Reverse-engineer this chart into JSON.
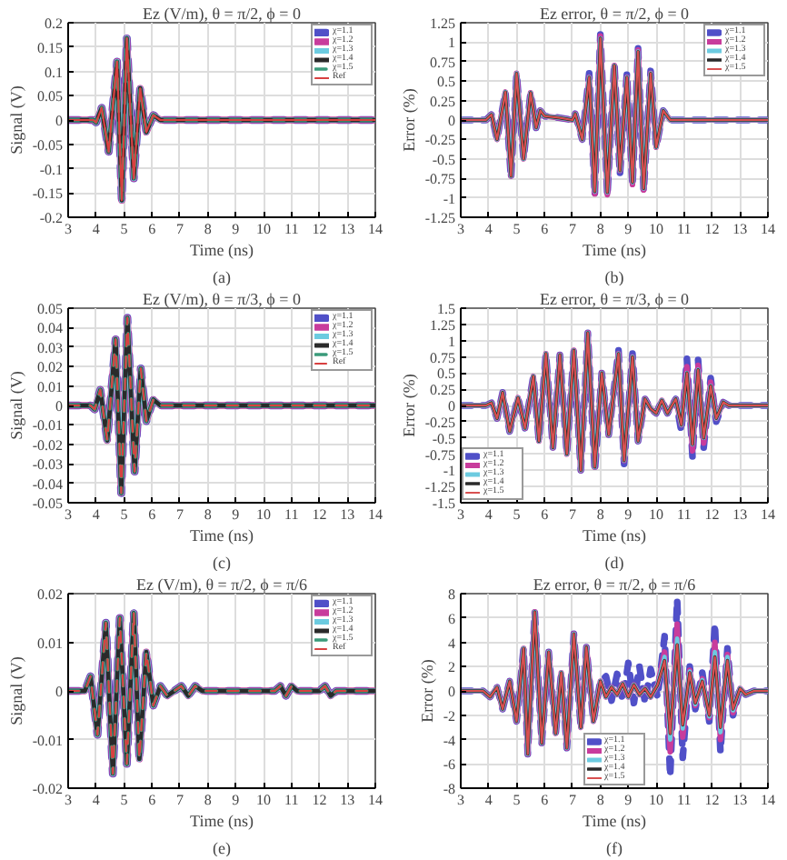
{
  "chart_data": [
    {
      "type": "line",
      "title": "Ez (V/m), θ = π/2, ϕ = 0",
      "xlabel": "Time (ns)",
      "ylabel": "Signal (V)",
      "annotations": [
        "(a)"
      ],
      "xlim": [
        3,
        14
      ],
      "xticks": [
        3,
        4,
        5,
        6,
        7,
        8,
        9,
        10,
        11,
        12,
        13,
        14
      ],
      "ylim": [
        -0.2,
        0.2
      ],
      "yticks": [
        -0.2,
        -0.15,
        -0.1,
        -0.05,
        0,
        0.05,
        0.1,
        0.15,
        0.2
      ],
      "grid": true,
      "legend": "top right",
      "x": [
        3,
        3.9,
        4.0,
        4.2,
        4.45,
        4.75,
        4.92,
        5.1,
        5.35,
        5.58,
        5.8,
        6.05,
        6.3,
        14
      ],
      "series": [
        {
          "name": "χ=1.1",
          "color": "#5050c8",
          "line_style": "dashed",
          "values": [
            0,
            0,
            -0.005,
            0.025,
            -0.065,
            0.12,
            -0.165,
            0.168,
            -0.12,
            0.065,
            -0.025,
            0.01,
            0,
            0
          ]
        },
        {
          "name": "χ=1.2",
          "color": "#c83c9c",
          "line_style": "solid",
          "values": [
            0,
            0,
            -0.005,
            0.025,
            -0.065,
            0.12,
            -0.165,
            0.168,
            -0.12,
            0.065,
            -0.025,
            0.01,
            0,
            0
          ]
        },
        {
          "name": "χ=1.3",
          "color": "#6ccbe0",
          "line_style": "solid",
          "values": [
            0,
            0,
            -0.005,
            0.025,
            -0.065,
            0.12,
            -0.165,
            0.168,
            -0.12,
            0.065,
            -0.025,
            0.01,
            0,
            0
          ]
        },
        {
          "name": "χ=1.4",
          "color": "#2a2a2a",
          "line_style": "solid",
          "values": [
            0,
            0,
            -0.005,
            0.025,
            -0.065,
            0.12,
            -0.165,
            0.168,
            -0.12,
            0.065,
            -0.025,
            0.01,
            0,
            0
          ]
        },
        {
          "name": "χ=1.5",
          "color": "#3a9a7a",
          "line_style": "dashed",
          "values": [
            0,
            0,
            -0.005,
            0.025,
            -0.065,
            0.12,
            -0.165,
            0.168,
            -0.12,
            0.065,
            -0.025,
            0.01,
            0,
            0
          ]
        },
        {
          "name": "Ref",
          "color": "#d84040",
          "line_style": "solid",
          "values": [
            0,
            0,
            -0.005,
            0.025,
            -0.065,
            0.12,
            -0.165,
            0.168,
            -0.12,
            0.065,
            -0.025,
            0.01,
            0,
            0
          ]
        }
      ]
    },
    {
      "type": "line",
      "title": "Ez error, θ = π/2, ϕ = 0",
      "xlabel": "Time (ns)",
      "ylabel": "Error (%)",
      "annotations": [
        "(b)"
      ],
      "xlim": [
        3,
        14
      ],
      "xticks": [
        3,
        4,
        5,
        6,
        7,
        8,
        9,
        10,
        11,
        12,
        13,
        14
      ],
      "ylim": [
        -1.25,
        1.25
      ],
      "yticks": [
        -1.25,
        -1,
        -0.75,
        -0.5,
        -0.25,
        0,
        0.25,
        0.5,
        0.75,
        1,
        1.25
      ],
      "grid": true,
      "legend": "top right",
      "x": [
        3,
        3.9,
        4.1,
        4.3,
        4.6,
        4.8,
        5.0,
        5.25,
        5.5,
        5.7,
        5.85,
        6.0,
        6.5,
        7.0,
        7.1,
        7.35,
        7.6,
        7.8,
        8.0,
        8.25,
        8.5,
        8.7,
        8.95,
        9.15,
        9.35,
        9.55,
        9.8,
        10.0,
        10.25,
        10.5,
        14
      ],
      "series": [
        {
          "name": "χ=1.1",
          "color": "#5050c8",
          "line_style": "dashed",
          "values": [
            0,
            0,
            0.07,
            -0.25,
            0.36,
            -0.75,
            0.6,
            -0.5,
            0.35,
            -0.1,
            0.12,
            0.05,
            0.03,
            0,
            0.08,
            -0.25,
            0.6,
            -0.97,
            1.1,
            -0.98,
            0.73,
            -0.7,
            0.6,
            -0.85,
            0.92,
            -0.92,
            0.63,
            -0.35,
            0.12,
            0,
            0
          ]
        },
        {
          "name": "χ=1.2",
          "color": "#c83c9c",
          "line_style": "solid",
          "values": [
            0,
            0,
            0.07,
            -0.25,
            0.36,
            -0.72,
            0.6,
            -0.5,
            0.35,
            -0.1,
            0.12,
            0.05,
            0.03,
            0,
            0.08,
            -0.25,
            0.55,
            -0.95,
            1.08,
            -0.96,
            0.7,
            -0.65,
            0.55,
            -0.83,
            0.9,
            -0.9,
            0.6,
            -0.35,
            0.12,
            0,
            0
          ]
        },
        {
          "name": "χ=1.3",
          "color": "#6ccbe0",
          "line_style": "solid",
          "values": [
            0,
            0,
            0.07,
            -0.25,
            0.36,
            -0.72,
            0.6,
            -0.5,
            0.35,
            -0.1,
            0.12,
            0.05,
            0.03,
            0,
            0.08,
            -0.25,
            0.55,
            -0.92,
            1.05,
            -0.93,
            0.7,
            -0.65,
            0.55,
            -0.8,
            0.88,
            -0.88,
            0.6,
            -0.35,
            0.12,
            0,
            0
          ]
        },
        {
          "name": "χ=1.4",
          "color": "#2a2a2a",
          "line_style": "solid",
          "values": [
            0,
            0,
            0.07,
            -0.25,
            0.36,
            -0.72,
            0.6,
            -0.5,
            0.35,
            -0.1,
            0.12,
            0.05,
            0.03,
            0,
            0.08,
            -0.25,
            0.55,
            -0.92,
            1.05,
            -0.93,
            0.7,
            -0.65,
            0.55,
            -0.8,
            0.88,
            -0.88,
            0.6,
            -0.35,
            0.12,
            0,
            0
          ]
        },
        {
          "name": "χ=1.5",
          "color": "#d85050",
          "line_style": "solid",
          "values": [
            0,
            0,
            0.07,
            -0.25,
            0.36,
            -0.72,
            0.6,
            -0.5,
            0.35,
            -0.1,
            0.12,
            0.05,
            0.03,
            0,
            0.08,
            -0.25,
            0.55,
            -0.92,
            1.05,
            -0.93,
            0.7,
            -0.65,
            0.55,
            -0.8,
            0.88,
            -0.88,
            0.6,
            -0.35,
            0.12,
            0,
            0
          ]
        }
      ]
    },
    {
      "type": "line",
      "title": "Ez (V/m), θ = π/3, ϕ = 0",
      "xlabel": "Time (ns)",
      "ylabel": "Signal (V)",
      "annotations": [
        "(c)"
      ],
      "xlim": [
        3,
        14
      ],
      "xticks": [
        3,
        4,
        5,
        6,
        7,
        8,
        9,
        10,
        11,
        12,
        13,
        14
      ],
      "ylim": [
        -0.05,
        0.05
      ],
      "yticks": [
        -0.05,
        -0.04,
        -0.03,
        -0.02,
        -0.01,
        0,
        0.01,
        0.02,
        0.03,
        0.04,
        0.05
      ],
      "grid": true,
      "legend": "top right",
      "x": [
        3,
        3.8,
        3.95,
        4.15,
        4.4,
        4.7,
        4.9,
        5.12,
        5.38,
        5.6,
        5.8,
        6.05,
        6.3,
        14
      ],
      "series": [
        {
          "name": "χ=1.1",
          "color": "#5050c8",
          "line_style": "dashed",
          "values": [
            0,
            0,
            -0.002,
            0.008,
            -0.018,
            0.034,
            -0.045,
            0.045,
            -0.034,
            0.019,
            -0.008,
            0.003,
            0,
            0
          ]
        },
        {
          "name": "χ=1.2",
          "color": "#c83c9c",
          "line_style": "solid",
          "values": [
            0,
            0,
            -0.002,
            0.008,
            -0.018,
            0.034,
            -0.045,
            0.045,
            -0.034,
            0.019,
            -0.008,
            0.003,
            0,
            0
          ]
        },
        {
          "name": "χ=1.3",
          "color": "#6ccbe0",
          "line_style": "solid",
          "values": [
            0,
            0,
            -0.002,
            0.008,
            -0.018,
            0.034,
            -0.045,
            0.045,
            -0.034,
            0.019,
            -0.008,
            0.003,
            0,
            0
          ]
        },
        {
          "name": "χ=1.4",
          "color": "#2a2a2a",
          "line_style": "solid",
          "values": [
            0,
            0,
            -0.002,
            0.008,
            -0.018,
            0.034,
            -0.045,
            0.045,
            -0.034,
            0.019,
            -0.008,
            0.003,
            0,
            0
          ]
        },
        {
          "name": "χ=1.5",
          "color": "#3a9a7a",
          "line_style": "dashed",
          "values": [
            0,
            0,
            -0.002,
            0.008,
            -0.018,
            0.034,
            -0.045,
            0.045,
            -0.034,
            0.019,
            -0.008,
            0.003,
            0,
            0
          ]
        },
        {
          "name": "Ref",
          "color": "#d84040",
          "line_style": "dashed",
          "values": [
            0,
            0,
            -0.002,
            0.008,
            -0.018,
            0.034,
            -0.045,
            0.045,
            -0.034,
            0.019,
            -0.008,
            0.003,
            0,
            0
          ]
        }
      ]
    },
    {
      "type": "line",
      "title": "Ez error, θ = π/3, ϕ = 0",
      "xlabel": "Time (ns)",
      "ylabel": "Error (%)",
      "annotations": [
        "(d)"
      ],
      "xlim": [
        3,
        14
      ],
      "xticks": [
        3,
        4,
        5,
        6,
        7,
        8,
        9,
        10,
        11,
        12,
        13,
        14
      ],
      "ylim": [
        -1.5,
        1.5
      ],
      "yticks": [
        -1.5,
        -1.25,
        -1,
        -0.75,
        -0.5,
        -0.25,
        0,
        0.25,
        0.5,
        0.75,
        1,
        1.25,
        1.5
      ],
      "grid": true,
      "legend": "bottom left",
      "x": [
        3,
        3.9,
        4.1,
        4.3,
        4.5,
        4.75,
        5.05,
        5.3,
        5.6,
        5.8,
        6.05,
        6.3,
        6.55,
        6.8,
        7.05,
        7.3,
        7.55,
        7.8,
        8.05,
        8.3,
        8.65,
        8.85,
        9.15,
        9.35,
        9.6,
        9.8,
        10.0,
        10.2,
        10.4,
        10.7,
        10.9,
        11.1,
        11.3,
        11.5,
        11.7,
        11.95,
        12.15,
        12.4,
        12.6,
        14
      ],
      "series": [
        {
          "name": "χ=1.1",
          "color": "#5050c8",
          "line_style": "dashed",
          "values": [
            0,
            0,
            0.04,
            -0.2,
            0.2,
            -0.4,
            0.12,
            -0.35,
            0.45,
            -0.55,
            0.8,
            -0.65,
            0.78,
            -0.75,
            0.85,
            -1.0,
            1.12,
            -1.02,
            0.5,
            -0.45,
            0.85,
            -0.9,
            0.8,
            -0.55,
            0.1,
            -0.05,
            -0.12,
            0.08,
            -0.12,
            0.1,
            -0.4,
            0.72,
            -0.8,
            0.7,
            -0.65,
            0.42,
            -0.25,
            0.05,
            0,
            0
          ]
        },
        {
          "name": "χ=1.2",
          "color": "#c83c9c",
          "line_style": "solid",
          "values": [
            0,
            0,
            0.04,
            -0.2,
            0.2,
            -0.4,
            0.12,
            -0.35,
            0.45,
            -0.55,
            0.8,
            -0.65,
            0.78,
            -0.75,
            0.85,
            -1.0,
            1.12,
            -0.95,
            0.5,
            -0.45,
            0.8,
            -0.85,
            0.75,
            -0.55,
            0.1,
            -0.05,
            -0.12,
            0.08,
            -0.12,
            0.1,
            -0.3,
            0.6,
            -0.7,
            0.62,
            -0.58,
            0.36,
            -0.2,
            0.05,
            0,
            0
          ]
        },
        {
          "name": "χ=1.3",
          "color": "#6ccbe0",
          "line_style": "solid",
          "values": [
            0,
            0,
            0.04,
            -0.2,
            0.2,
            -0.4,
            0.12,
            -0.35,
            0.45,
            -0.55,
            0.8,
            -0.65,
            0.78,
            -0.75,
            0.85,
            -1.0,
            1.12,
            -0.95,
            0.5,
            -0.45,
            0.8,
            -0.85,
            0.75,
            -0.55,
            0.1,
            -0.05,
            -0.12,
            0.08,
            -0.12,
            0.1,
            -0.3,
            0.5,
            -0.6,
            0.55,
            -0.5,
            0.3,
            -0.2,
            0.05,
            0,
            0
          ]
        },
        {
          "name": "χ=1.4",
          "color": "#2a2a2a",
          "line_style": "solid",
          "values": [
            0,
            0,
            0.04,
            -0.2,
            0.2,
            -0.4,
            0.12,
            -0.35,
            0.45,
            -0.55,
            0.8,
            -0.65,
            0.78,
            -0.75,
            0.85,
            -1.0,
            1.12,
            -0.95,
            0.5,
            -0.45,
            0.8,
            -0.85,
            0.75,
            -0.55,
            0.1,
            -0.05,
            -0.12,
            0.08,
            -0.12,
            0.1,
            -0.3,
            0.5,
            -0.6,
            0.55,
            -0.5,
            0.3,
            -0.2,
            0.05,
            0,
            0
          ]
        },
        {
          "name": "χ=1.5",
          "color": "#d85050",
          "line_style": "solid",
          "values": [
            0,
            0,
            0.04,
            -0.2,
            0.2,
            -0.4,
            0.12,
            -0.35,
            0.45,
            -0.55,
            0.8,
            -0.65,
            0.78,
            -0.75,
            0.85,
            -1.0,
            1.12,
            -0.95,
            0.5,
            -0.45,
            0.8,
            -0.85,
            0.75,
            -0.55,
            0.1,
            -0.05,
            -0.12,
            0.08,
            -0.12,
            0.1,
            -0.3,
            0.5,
            -0.6,
            0.55,
            -0.5,
            0.3,
            -0.2,
            0.05,
            0,
            0
          ]
        }
      ]
    },
    {
      "type": "line",
      "title": "Ez (V/m), θ = π/2, ϕ = π/6",
      "xlabel": "Time (ns)",
      "ylabel": "Signal (V)",
      "annotations": [
        "(e)"
      ],
      "xlim": [
        3,
        14
      ],
      "xticks": [
        3,
        4,
        5,
        6,
        7,
        8,
        9,
        10,
        11,
        12,
        13,
        14
      ],
      "ylim": [
        -0.02,
        0.02
      ],
      "yticks": [
        -0.02,
        -0.01,
        0,
        0.01,
        0.02
      ],
      "grid": true,
      "legend": "top right",
      "x": [
        3,
        3.6,
        3.8,
        4.05,
        4.35,
        4.6,
        4.85,
        5.1,
        5.35,
        5.55,
        5.8,
        6.05,
        6.3,
        6.55,
        6.8,
        7.05,
        7.3,
        7.55,
        7.8,
        10.4,
        10.6,
        10.8,
        11.0,
        11.2,
        12.0,
        12.2,
        12.4,
        12.6,
        14
      ],
      "series": [
        {
          "name": "χ=1.1",
          "color": "#5050c8",
          "line_style": "dashed",
          "values": [
            0,
            0,
            0.003,
            -0.009,
            0.014,
            -0.017,
            0.015,
            -0.015,
            0.016,
            -0.014,
            0.008,
            -0.003,
            0.001,
            -0.001,
            0,
            0.001,
            -0.001,
            0.001,
            0,
            0,
            0.001,
            -0.001,
            0.001,
            0,
            0,
            0.001,
            -0.001,
            0,
            0
          ]
        },
        {
          "name": "χ=1.2",
          "color": "#c83c9c",
          "line_style": "solid",
          "values": [
            0,
            0,
            0.003,
            -0.009,
            0.014,
            -0.017,
            0.015,
            -0.015,
            0.016,
            -0.014,
            0.008,
            -0.003,
            0.001,
            -0.001,
            0,
            0.001,
            -0.001,
            0.001,
            0,
            0,
            0.001,
            -0.001,
            0.001,
            0,
            0,
            0.001,
            -0.001,
            0,
            0
          ]
        },
        {
          "name": "χ=1.3",
          "color": "#6ccbe0",
          "line_style": "solid",
          "values": [
            0,
            0,
            0.003,
            -0.009,
            0.014,
            -0.017,
            0.015,
            -0.015,
            0.016,
            -0.014,
            0.008,
            -0.003,
            0.001,
            -0.001,
            0,
            0.001,
            -0.001,
            0.001,
            0,
            0,
            0.001,
            -0.001,
            0.001,
            0,
            0,
            0.001,
            -0.001,
            0,
            0
          ]
        },
        {
          "name": "χ=1.4",
          "color": "#2a2a2a",
          "line_style": "solid",
          "values": [
            0,
            0,
            0.003,
            -0.009,
            0.014,
            -0.017,
            0.015,
            -0.015,
            0.016,
            -0.014,
            0.008,
            -0.003,
            0.001,
            -0.001,
            0,
            0.001,
            -0.001,
            0.001,
            0,
            0,
            0.001,
            -0.001,
            0.001,
            0,
            0,
            0.001,
            -0.001,
            0,
            0
          ]
        },
        {
          "name": "χ=1.5",
          "color": "#3a9a7a",
          "line_style": "dashed",
          "values": [
            0,
            0,
            0.003,
            -0.009,
            0.014,
            -0.017,
            0.015,
            -0.015,
            0.016,
            -0.014,
            0.008,
            -0.003,
            0.001,
            -0.001,
            0,
            0.001,
            -0.001,
            0.001,
            0,
            0,
            0.001,
            -0.001,
            0.001,
            0,
            0,
            0.001,
            -0.001,
            0,
            0
          ]
        },
        {
          "name": "Ref",
          "color": "#d84040",
          "line_style": "dashed",
          "values": [
            0,
            0,
            0.003,
            -0.009,
            0.014,
            -0.017,
            0.015,
            -0.015,
            0.016,
            -0.014,
            0.008,
            -0.003,
            0.001,
            -0.001,
            0,
            0.001,
            -0.001,
            0.001,
            0,
            0,
            0.001,
            -0.001,
            0.001,
            0,
            0,
            0.001,
            -0.001,
            0,
            0
          ]
        }
      ]
    },
    {
      "type": "line",
      "title": "Ez error, θ = π/2, ϕ = π/6",
      "xlabel": "Time (ns)",
      "ylabel": "Error (%)",
      "annotations": [
        "(f)"
      ],
      "xlim": [
        3,
        14
      ],
      "xticks": [
        3,
        4,
        5,
        6,
        7,
        8,
        9,
        10,
        11,
        12,
        13,
        14
      ],
      "ylim": [
        -8,
        8
      ],
      "yticks": [
        -8,
        -6,
        -4,
        -2,
        0,
        2,
        4,
        6,
        8
      ],
      "grid": true,
      "legend": "bottom",
      "x": [
        3,
        3.8,
        4.05,
        4.3,
        4.5,
        4.75,
        5.0,
        5.25,
        5.4,
        5.65,
        5.9,
        6.15,
        6.4,
        6.6,
        6.8,
        7.05,
        7.3,
        7.5,
        7.75,
        8.0,
        8.2,
        8.4,
        8.6,
        8.8,
        9.0,
        9.2,
        9.4,
        9.6,
        9.8,
        10.05,
        10.3,
        10.5,
        10.75,
        10.95,
        11.2,
        11.4,
        11.65,
        11.9,
        12.1,
        12.3,
        12.55,
        12.75,
        13.0,
        13.2,
        13.5,
        14
      ],
      "series": [
        {
          "name": "χ=1.1",
          "color": "#5050c8",
          "line_style": "dashed",
          "values": [
            0,
            0,
            -0.5,
            0.3,
            -1.5,
            0.8,
            -2.5,
            3.5,
            -5.2,
            6.5,
            -4.3,
            3.2,
            -3.5,
            1.5,
            -4.7,
            4.7,
            -3.0,
            3.6,
            -2.5,
            0.8,
            1.2,
            -0.8,
            1.4,
            -0.8,
            2.3,
            -1.0,
            2.0,
            -1.0,
            1.8,
            -0.5,
            4.5,
            -7.0,
            7.5,
            -5.5,
            2.0,
            -1.5,
            1.5,
            -2.5,
            5.5,
            -5.0,
            3.5,
            -2.0,
            0.2,
            -0.3,
            0,
            0
          ]
        },
        {
          "name": "χ=1.2",
          "color": "#c83c9c",
          "line_style": "solid",
          "values": [
            0,
            0,
            -0.5,
            0.3,
            -1.5,
            0.8,
            -2.5,
            3.5,
            -5.2,
            6.5,
            -4.3,
            3.2,
            -3.5,
            1.5,
            -4.7,
            4.7,
            -3.0,
            3.6,
            -2.5,
            0.8,
            -0.5,
            0.3,
            -0.3,
            0.6,
            -0.5,
            0.5,
            -0.3,
            0.2,
            -0.5,
            0.5,
            3.2,
            -5.0,
            5.5,
            -3.8,
            1.7,
            -1.2,
            1.0,
            -2.2,
            4.0,
            -4.0,
            3.0,
            -1.8,
            0.2,
            -0.3,
            0,
            0
          ]
        },
        {
          "name": "χ=1.3",
          "color": "#6ccbe0",
          "line_style": "solid",
          "values": [
            0,
            0,
            -0.5,
            0.3,
            -1.5,
            0.8,
            -2.5,
            3.5,
            -5.2,
            6.5,
            -4.3,
            3.2,
            -3.5,
            1.5,
            -4.7,
            4.7,
            -3.0,
            3.6,
            -2.5,
            0.8,
            -0.5,
            0.3,
            -0.3,
            0.6,
            -0.5,
            0.5,
            -0.3,
            0.2,
            -0.5,
            0.5,
            2.8,
            -4.0,
            4.3,
            -3.1,
            1.6,
            -1.1,
            0.9,
            -2.1,
            3.2,
            -3.4,
            2.8,
            -1.6,
            0.2,
            -0.3,
            0,
            0
          ]
        },
        {
          "name": "χ=1.4",
          "color": "#2a2a2a",
          "line_style": "solid",
          "values": [
            0,
            0,
            -0.5,
            0.3,
            -1.5,
            0.8,
            -2.5,
            3.5,
            -5.2,
            6.5,
            -4.3,
            3.2,
            -3.5,
            1.5,
            -4.7,
            4.7,
            -3.0,
            3.6,
            -2.5,
            0.8,
            -0.5,
            0.3,
            -0.3,
            0.6,
            -0.5,
            0.5,
            -0.3,
            0.2,
            -0.5,
            0.5,
            2.5,
            -3.5,
            3.8,
            -2.8,
            1.5,
            -1.0,
            0.8,
            -2.0,
            2.8,
            -3.0,
            2.5,
            -1.5,
            0.2,
            -0.3,
            0,
            0
          ]
        },
        {
          "name": "χ=1.5",
          "color": "#d85050",
          "line_style": "solid",
          "values": [
            0,
            0,
            -0.5,
            0.3,
            -1.5,
            0.8,
            -2.5,
            3.5,
            -5.2,
            6.5,
            -4.3,
            3.2,
            -3.5,
            1.5,
            -4.7,
            4.7,
            -3.0,
            3.6,
            -2.5,
            0.8,
            -0.5,
            0.3,
            -0.3,
            0.6,
            -0.5,
            0.5,
            -0.3,
            0.2,
            -0.5,
            0.5,
            2.5,
            -3.5,
            3.8,
            -2.8,
            1.5,
            -1.0,
            0.8,
            -2.0,
            2.8,
            -3.0,
            2.5,
            -1.5,
            0.2,
            -0.3,
            0,
            0
          ]
        }
      ]
    }
  ]
}
